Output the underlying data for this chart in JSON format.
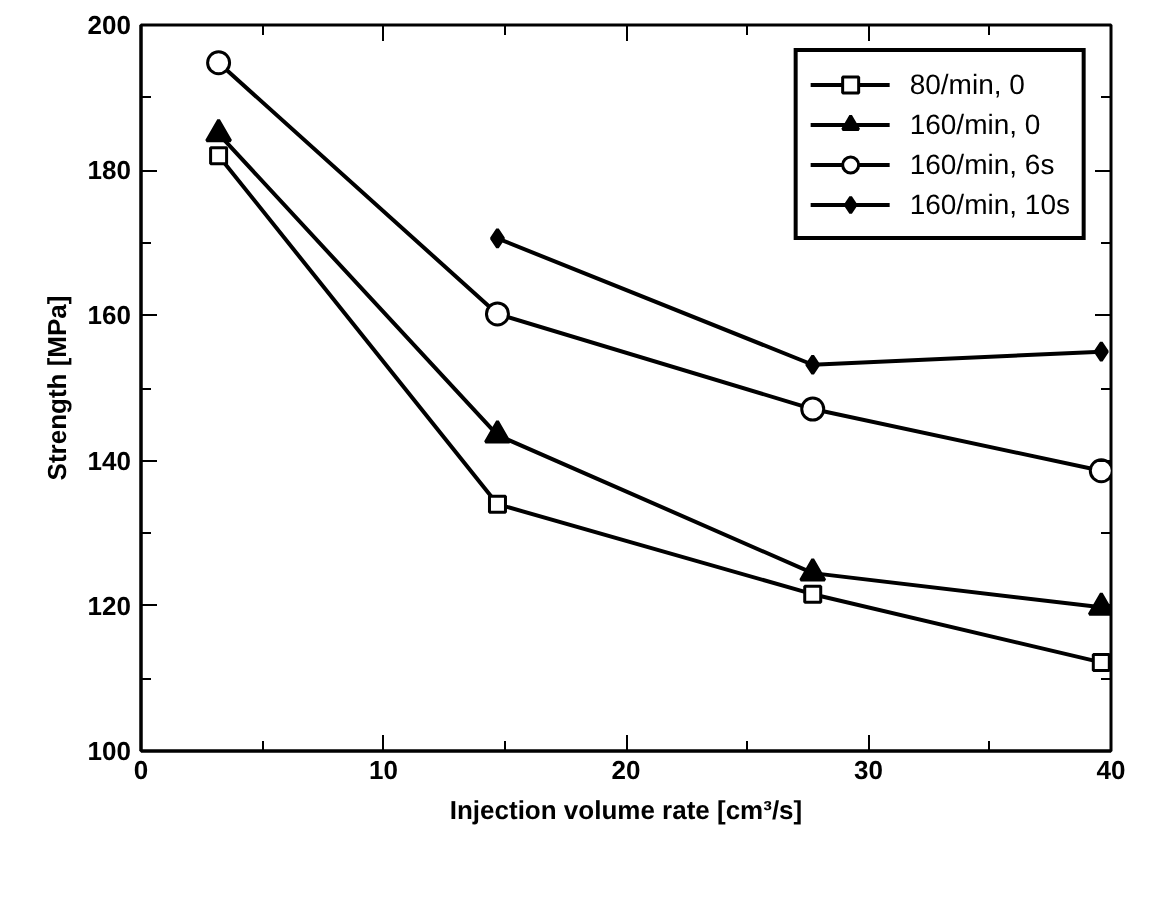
{
  "chart_data": {
    "type": "line",
    "xlabel": "Injection volume rate [cm³/s]",
    "ylabel": "Strength [MPa]",
    "xlim": [
      0,
      40
    ],
    "xticks": [
      0,
      10,
      20,
      30,
      40
    ],
    "ylim": [
      100,
      200
    ],
    "yticks": [
      100,
      120,
      140,
      160,
      180,
      200
    ],
    "grid": false,
    "legend": "top right",
    "line_style": "solid",
    "series": [
      {
        "name": "80/min, 0",
        "color": "#000000",
        "marker": "square",
        "x": [
          3.2,
          14.7,
          27.7,
          39.6
        ],
        "values": [
          182,
          134,
          121.6,
          112.2
        ]
      },
      {
        "name": "160/min, 0",
        "color": "#000000",
        "marker": "triangle",
        "x": [
          3.2,
          14.7,
          27.7,
          39.6
        ],
        "values": [
          185,
          143.5,
          124.5,
          119.8
        ]
      },
      {
        "name": "160/min, 6s",
        "color": "#000000",
        "marker": "circle",
        "x": [
          3.2,
          14.7,
          27.7,
          39.6
        ],
        "values": [
          194.8,
          160.2,
          147.1,
          138.6
        ]
      },
      {
        "name": "160/min, 10s",
        "color": "#000000",
        "marker": "diamond",
        "x": [
          14.7,
          27.7,
          39.6
        ],
        "values": [
          170.6,
          153.2,
          155
        ]
      }
    ]
  }
}
